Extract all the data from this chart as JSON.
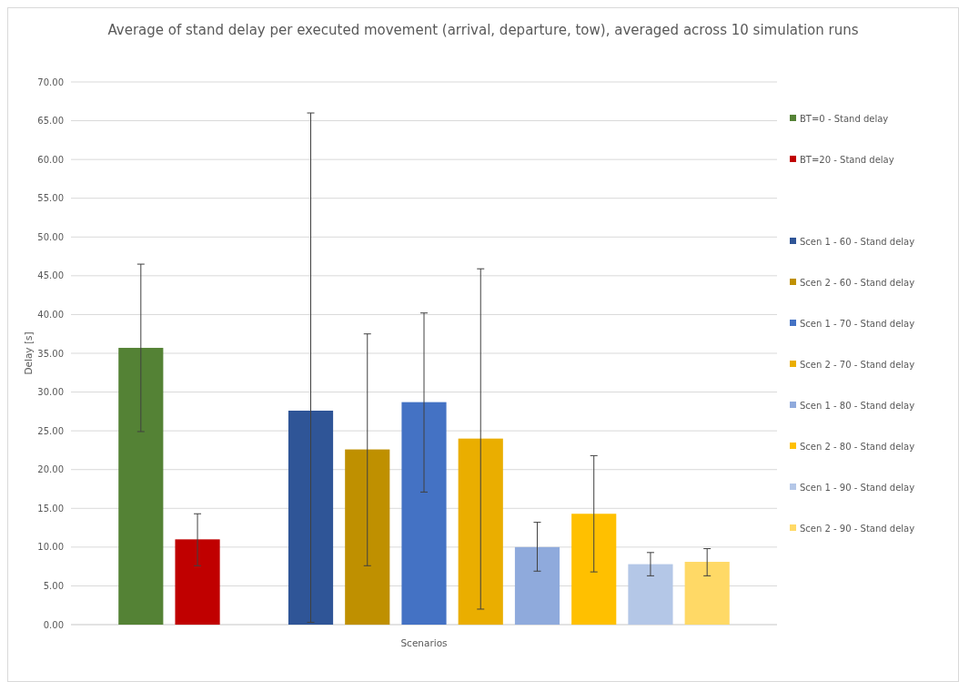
{
  "chart_data": {
    "type": "bar",
    "title": "Average of stand delay per executed movement (arrival, departure, tow), averaged across 10 simulation runs",
    "xlabel": "Scenarios",
    "ylabel": "Delay [s]",
    "categories": [
      null
    ],
    "series": [
      {
        "name": "BT=0 - Stand delay",
        "color": "#548235",
        "values": [
          35.7
        ],
        "errors": [
          [
            24.9,
            46.5
          ]
        ]
      },
      {
        "name": "BT=20 - Stand delay",
        "color": "#c00000",
        "values": [
          11.0
        ],
        "errors": [
          [
            7.6,
            14.3
          ]
        ]
      },
      {
        "values": [
          null
        ]
      },
      {
        "name": "Scen 1 - 60 - Stand delay",
        "color": "#2f5597",
        "values": [
          27.6
        ],
        "errors": [
          [
            0.3,
            66.0
          ]
        ]
      },
      {
        "name": "Scen 2 - 60 - Stand delay",
        "color": "#bf9000",
        "values": [
          22.6
        ],
        "errors": [
          [
            7.6,
            37.5
          ]
        ]
      },
      {
        "name": "Scen 1 - 70 - Stand delay",
        "color": "#4472c4",
        "values": [
          28.7
        ],
        "errors": [
          [
            17.1,
            40.2
          ]
        ]
      },
      {
        "name": "Scen 2 - 70 - Stand delay",
        "color": "#eaae00",
        "values": [
          24.0
        ],
        "errors": [
          [
            2.0,
            45.9
          ]
        ]
      },
      {
        "name": "Scen 1 - 80 - Stand delay",
        "color": "#8faadc",
        "values": [
          10.0
        ],
        "errors": [
          [
            6.9,
            13.2
          ]
        ]
      },
      {
        "name": "Scen 2 - 80 - Stand delay",
        "color": "#ffc000",
        "values": [
          14.3
        ],
        "errors": [
          [
            6.8,
            21.8
          ]
        ]
      },
      {
        "name": "Scen 1 - 90 - Stand delay",
        "color": "#b4c7e7",
        "values": [
          7.8
        ],
        "errors": [
          [
            6.3,
            9.3
          ]
        ]
      },
      {
        "name": "Scen 2 - 90 - Stand delay",
        "color": "#ffd966",
        "values": [
          8.1
        ],
        "errors": [
          [
            6.3,
            9.8
          ]
        ]
      }
    ],
    "ylim": [
      0,
      70
    ],
    "yticks": [
      {
        "value": 0,
        "label": "0.00"
      },
      {
        "value": 5,
        "label": "5.00"
      },
      {
        "value": 10,
        "label": "10.00"
      },
      {
        "value": 15,
        "label": "15.00"
      },
      {
        "value": 20,
        "label": "20.00"
      },
      {
        "value": 25,
        "label": "25.00"
      },
      {
        "value": 30,
        "label": "30.00"
      },
      {
        "value": 35,
        "label": "35.00"
      },
      {
        "value": 40,
        "label": "40.00"
      },
      {
        "value": 45,
        "label": "45.00"
      },
      {
        "value": 50,
        "label": "50.00"
      },
      {
        "value": 55,
        "label": "55.00"
      },
      {
        "value": 60,
        "label": "60.00"
      },
      {
        "value": 65,
        "label": "65.00"
      },
      {
        "value": 70,
        "label": "70.00"
      }
    ],
    "grid": "y",
    "legend": "right"
  }
}
